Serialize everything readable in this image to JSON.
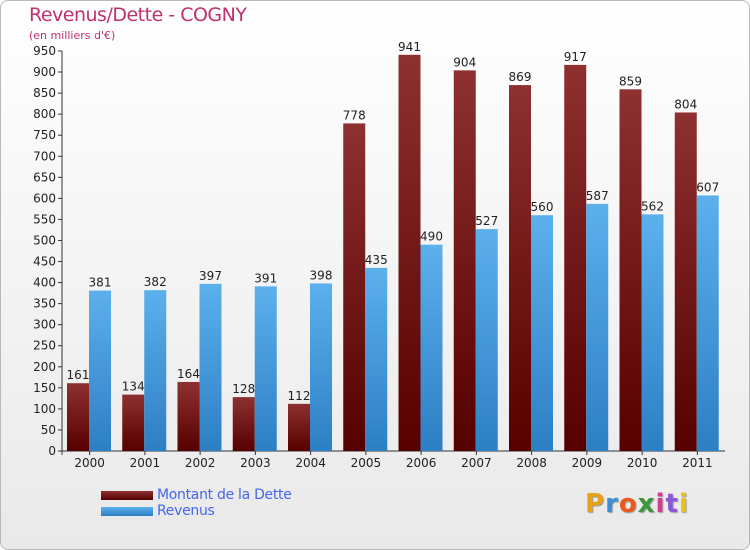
{
  "chart_data": {
    "type": "bar",
    "title": "Revenus/Dette - COGNY",
    "subtitle": "(en milliers d'€)",
    "categories": [
      "2000",
      "2001",
      "2002",
      "2003",
      "2004",
      "2005",
      "2006",
      "2007",
      "2008",
      "2009",
      "2010",
      "2011"
    ],
    "series": [
      {
        "name": "Montant de la Dette",
        "color": "#6e1010",
        "values": [
          161,
          134,
          164,
          128,
          112,
          778,
          941,
          904,
          869,
          917,
          859,
          804
        ]
      },
      {
        "name": "Revenus",
        "color": "#4a9ee0",
        "values": [
          381,
          382,
          397,
          391,
          398,
          435,
          490,
          527,
          560,
          587,
          562,
          607
        ]
      }
    ],
    "ylim": [
      0,
      950
    ],
    "yticks": [
      0,
      50,
      100,
      150,
      200,
      250,
      300,
      350,
      400,
      450,
      500,
      550,
      600,
      650,
      700,
      750,
      800,
      850,
      900,
      950
    ],
    "grid": false,
    "legend": "bottom-left"
  },
  "logo": {
    "text": "Proxiti",
    "colors": [
      "#e8a21a",
      "#3b8fd6",
      "#e85a1a",
      "#3a9a3a",
      "#d63b8f",
      "#8a5ad6",
      "#e8c21a"
    ]
  }
}
